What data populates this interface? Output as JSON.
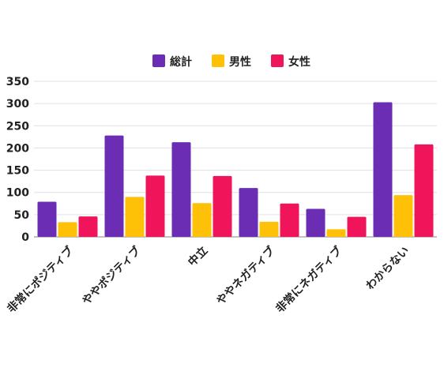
{
  "chart_data": {
    "type": "bar",
    "categories": [
      "非常にポジティブ",
      "ややポジティブ",
      "中立",
      "ややネガティブ",
      "非常にネガティブ",
      "わからない"
    ],
    "series": [
      {
        "name": "総計",
        "color": "#6a2db3",
        "values": [
          79,
          228,
          213,
          110,
          63,
          303
        ]
      },
      {
        "name": "男性",
        "color": "#ffc107",
        "values": [
          33,
          90,
          76,
          34,
          17,
          94
        ]
      },
      {
        "name": "女性",
        "color": "#f0155a",
        "values": [
          46,
          138,
          137,
          75,
          45,
          208
        ]
      }
    ],
    "yticks": [
      "0",
      "50",
      "100",
      "150",
      "200",
      "250",
      "300",
      "350"
    ],
    "ylim": [
      0,
      350
    ],
    "grid": true,
    "legend_position": "top-center",
    "title": "",
    "xlabel": "",
    "ylabel": ""
  }
}
